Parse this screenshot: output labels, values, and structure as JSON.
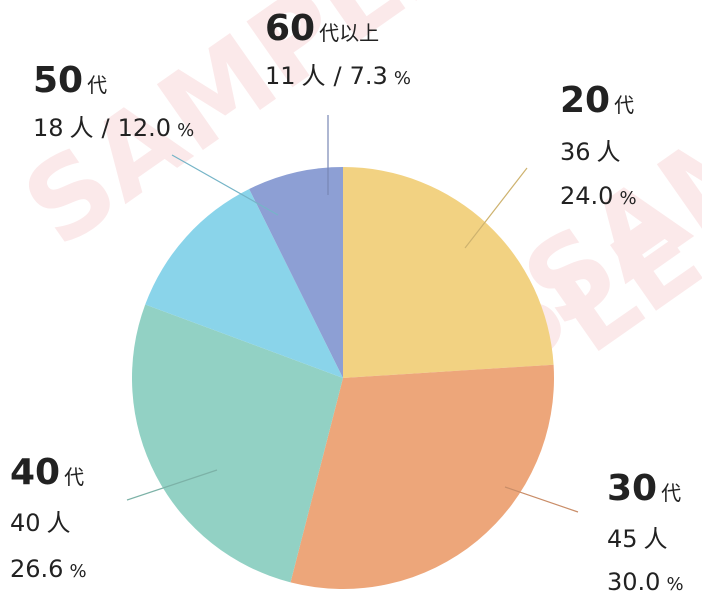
{
  "chart_data": {
    "type": "pie",
    "watermark": "SAMPLE",
    "category_numbers": [
      "20",
      "30",
      "40",
      "50",
      "60"
    ],
    "category_suffixes": [
      "代",
      "代",
      "代",
      "代",
      "代以上"
    ],
    "values": [
      36,
      45,
      40,
      18,
      11
    ],
    "count_unit": "人",
    "percentages": [
      24.0,
      30.0,
      26.6,
      12.0,
      7.3
    ],
    "percentage_labels": [
      "24.0",
      "30.0",
      "26.6",
      "12.0",
      "7.3"
    ],
    "percent_unit": "%",
    "separator": "/",
    "colors": [
      "#f2d282",
      "#eda67a",
      "#92d1c4",
      "#8ad4ea",
      "#8d9fd4"
    ]
  }
}
